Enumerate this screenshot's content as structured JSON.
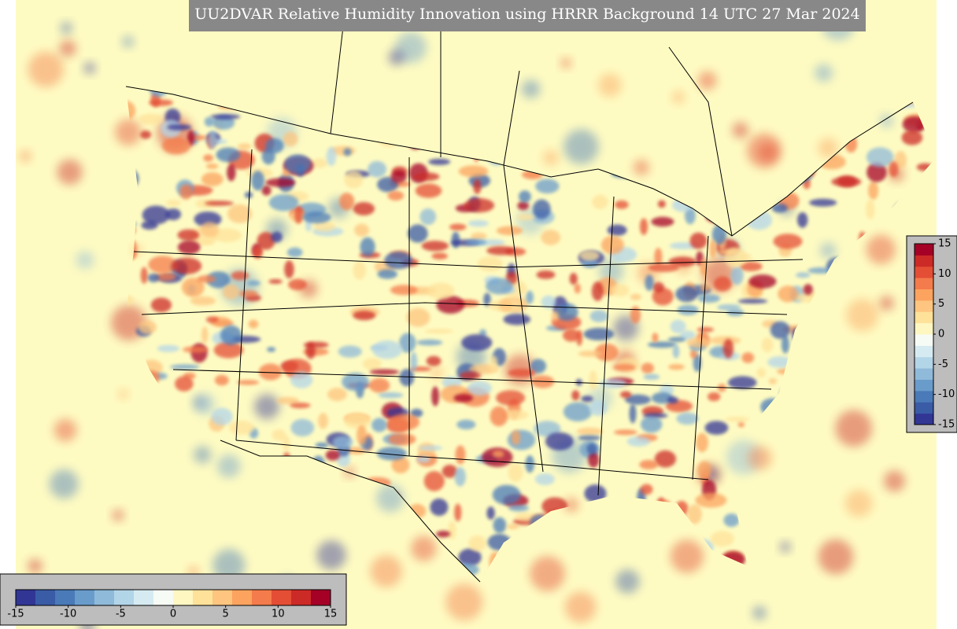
{
  "title": "UU2DVAR Relative Humidity Innovation using HRRR Background 14 UTC 27 Mar 2024",
  "colorbar_horizontal": {
    "range": [
      -15,
      15
    ],
    "ticks": [
      -15,
      -10,
      -5,
      0,
      5,
      10,
      15
    ]
  },
  "colorbar_vertical": {
    "range": [
      -15,
      15
    ],
    "ticks": [
      15,
      10,
      5,
      0,
      -5,
      -10,
      -15
    ]
  }
}
